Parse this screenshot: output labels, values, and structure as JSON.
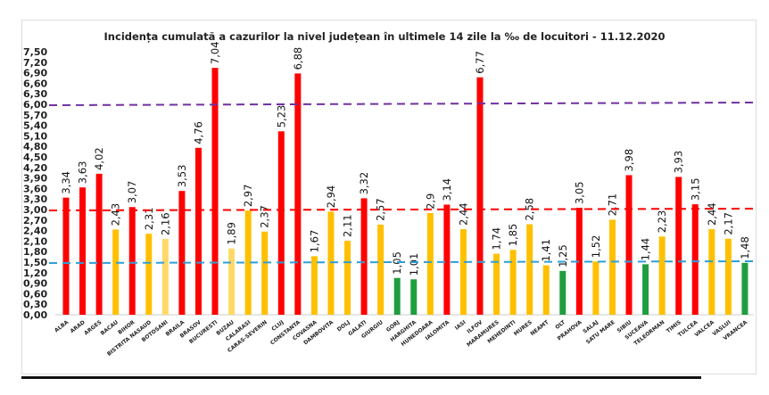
{
  "chart_data": {
    "type": "bar",
    "title": "Incidența cumulată a cazurilor la nivel județean în ultimele 14 zile la ‰ de locuitori - 11.12.2020",
    "xlabel": "",
    "ylabel": "",
    "ylim": [
      0,
      7.5
    ],
    "yticks": [
      "0,00",
      "0,30",
      "0,60",
      "0,90",
      "1,20",
      "1,50",
      "1,80",
      "2,10",
      "2,40",
      "2,70",
      "3,00",
      "3,30",
      "3,60",
      "3,90",
      "4,20",
      "4,50",
      "4,80",
      "5,10",
      "5,40",
      "5,70",
      "6,00",
      "6,30",
      "6,60",
      "6,90",
      "7,20",
      "7,50"
    ],
    "categories": [
      "ALBA",
      "ARAD",
      "ARGES",
      "BACAU",
      "BIHOR",
      "BISTRITA NASAUD",
      "BOTOSANI",
      "BRAILA",
      "BRASOV",
      "BUCURESTI",
      "BUZAU",
      "CALARASI",
      "CARAS-SEVERIN",
      "CLUJ",
      "CONSTANTA",
      "COVASNA",
      "DAMBOVITA",
      "DOLJ",
      "GALATI",
      "GIURGIU",
      "GORJ",
      "HARGHITA",
      "HUNEDOARA",
      "IALOMITA",
      "IASI",
      "ILFOV",
      "MARAMURES",
      "MEHEDINTI",
      "MURES",
      "NEAMT",
      "OLT",
      "PRAHOVA",
      "SALAJ",
      "SATU MARE",
      "SIBIU",
      "SUCEAVA",
      "TELEORMAN",
      "TIMIS",
      "TULCEA",
      "VALCEA",
      "VASLUI",
      "VRANCEA"
    ],
    "values": [
      3.34,
      3.63,
      4.02,
      2.43,
      3.07,
      2.31,
      2.16,
      3.53,
      4.76,
      7.04,
      1.89,
      2.97,
      2.37,
      5.23,
      6.88,
      1.67,
      2.94,
      2.11,
      3.32,
      2.57,
      1.05,
      1.01,
      2.9,
      3.14,
      2.44,
      6.77,
      1.74,
      1.85,
      2.58,
      1.41,
      1.25,
      3.05,
      1.52,
      2.71,
      3.98,
      1.44,
      2.23,
      3.93,
      3.15,
      2.44,
      2.17,
      1.48
    ],
    "value_labels": [
      "3,34",
      "3,63",
      "4,02",
      "2,43",
      "3,07",
      "2,31",
      "2,16",
      "3,53",
      "4,76",
      "7,04",
      "1,89",
      "2,97",
      "2,37",
      "5,23",
      "6,88",
      "1,67",
      "2,94",
      "2,11",
      "3,32",
      "2,57",
      "1,05",
      "1,01",
      "2,9",
      "3,14",
      "2,44",
      "6,77",
      "1,74",
      "1,85",
      "2,58",
      "1,41",
      "1,25",
      "3,05",
      "1,52",
      "2,71",
      "3,98",
      "1,44",
      "2,23",
      "3,93",
      "3,15",
      "2,44",
      "2,17",
      "1,48"
    ],
    "bar_colors": [
      "r",
      "r",
      "r",
      "o",
      "r",
      "o",
      "y",
      "r",
      "r",
      "r",
      "y",
      "o",
      "o",
      "r",
      "r",
      "o",
      "o",
      "o",
      "r",
      "o",
      "g",
      "g",
      "o",
      "r",
      "o",
      "r",
      "o",
      "o",
      "o",
      "o",
      "g",
      "r",
      "o",
      "o",
      "r",
      "g",
      "o",
      "r",
      "r",
      "o",
      "o",
      "g"
    ],
    "palette": {
      "r": "#ff0000",
      "o": "#ffc000",
      "y": "#ffd966",
      "g": "#1e9e3e"
    },
    "thresholds": [
      {
        "value": 6.0,
        "color": "#7030a0"
      },
      {
        "value": 3.0,
        "color": "#ff0000"
      },
      {
        "value": 1.5,
        "color": "#2e9fd8"
      }
    ]
  }
}
